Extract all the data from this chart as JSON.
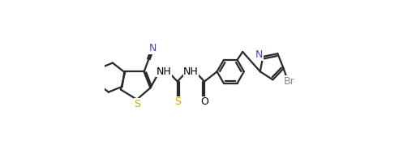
{
  "background_color": "#ffffff",
  "line_color": "#000000",
  "line_width": 1.6,
  "font_size": 8.5,
  "figure_width": 5.13,
  "figure_height": 1.9,
  "dpi": 100,
  "xlim": [
    0,
    11.5
  ],
  "ylim": [
    0,
    8.5
  ],
  "colors": {
    "N": "#4444cc",
    "S": "#ccaa00",
    "Br": "#888888",
    "bond": "#2a2a2a",
    "label_bg": "#ffffff"
  }
}
